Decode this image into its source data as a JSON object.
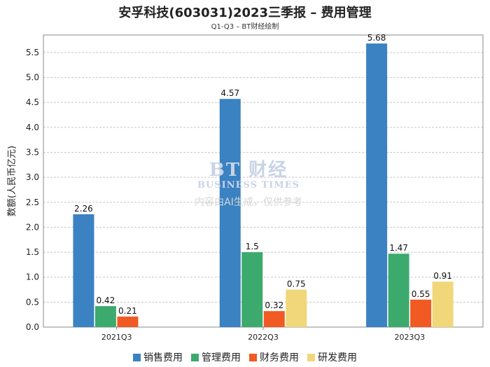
{
  "page": {
    "title": "安孚科技(603031)2023三季报 – 费用管理",
    "subtitle": "Q1-Q3 – BT财经绘制",
    "watermark": {
      "brand": "BT 财经",
      "brand_en": "BUSINESS TIMES",
      "note": "内容由AI生成，仅供参考"
    }
  },
  "chart_data": {
    "type": "bar",
    "categories": [
      "2021Q3",
      "2022Q3",
      "2023Q3"
    ],
    "ylabel": "数额(人民币亿元)",
    "ylim": [
      0,
      5.85
    ],
    "yticks": [
      "0.0",
      "0.5",
      "1.0",
      "1.5",
      "2.0",
      "2.5",
      "3.0",
      "3.5",
      "4.0",
      "4.5",
      "5.0",
      "5.5"
    ],
    "grid": true,
    "legend_position": "bottom",
    "series": [
      {
        "name": "销售费用",
        "color": "#3a82c2",
        "values": [
          2.26,
          4.57,
          5.68
        ],
        "labels": [
          "2.26",
          "4.57",
          "5.68"
        ]
      },
      {
        "name": "管理费用",
        "color": "#3daa6d",
        "values": [
          0.42,
          1.5,
          1.47
        ],
        "labels": [
          "0.42",
          "1.5",
          "1.47"
        ]
      },
      {
        "name": "财务费用",
        "color": "#f15a22",
        "values": [
          0.21,
          0.32,
          0.55
        ],
        "labels": [
          "0.21",
          "0.32",
          "0.55"
        ]
      },
      {
        "name": "研发费用",
        "color": "#f1d77a",
        "values": [
          null,
          0.75,
          0.91
        ],
        "labels": [
          "",
          "0.75",
          "0.91"
        ]
      }
    ]
  }
}
